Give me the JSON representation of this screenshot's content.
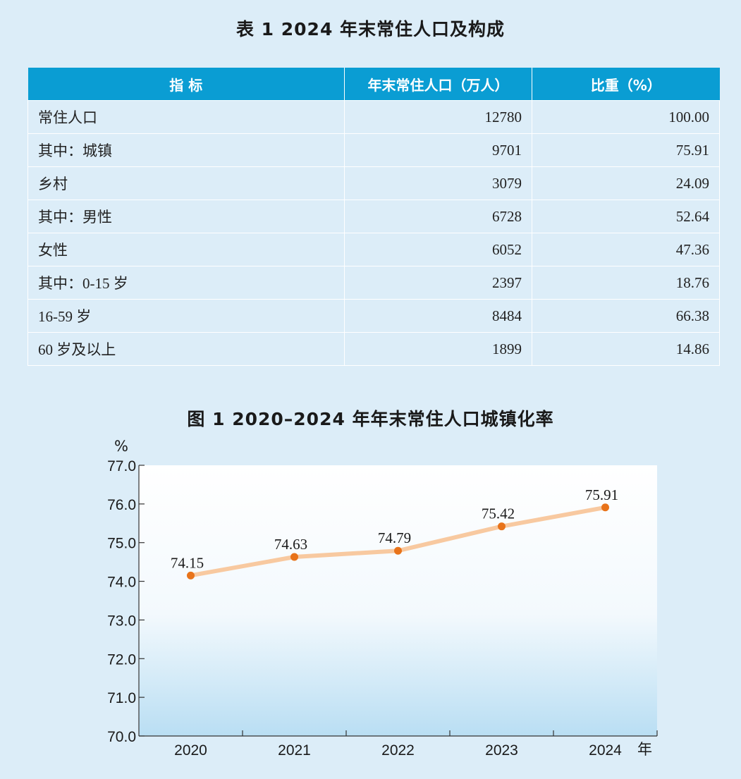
{
  "table": {
    "title": "表 1  2024 年末常住人口及构成",
    "headers": [
      "指  标",
      "年末常住人口（万人）",
      "比重（%）"
    ],
    "rows": [
      {
        "label": "常住人口",
        "population": "12780",
        "share": "100.00",
        "indent": 0
      },
      {
        "label": "其中：城镇",
        "population": "9701",
        "share": "75.91",
        "indent": 1
      },
      {
        "label": "乡村",
        "population": "3079",
        "share": "24.09",
        "indent": 2
      },
      {
        "label": "其中：男性",
        "population": "6728",
        "share": "52.64",
        "indent": 1
      },
      {
        "label": "女性",
        "population": "6052",
        "share": "47.36",
        "indent": 2
      },
      {
        "label": "其中：0-15 岁",
        "population": "2397",
        "share": "18.76",
        "indent": 1
      },
      {
        "label": "16-59 岁",
        "population": "8484",
        "share": "66.38",
        "indent": 2
      },
      {
        "label": "60 岁及以上",
        "population": "1899",
        "share": "14.86",
        "indent": 2
      }
    ]
  },
  "chart": {
    "title": "图 1  2020–2024 年年末常住人口城镇化率"
  },
  "chart_data": {
    "type": "line",
    "title": "图 1  2020–2024 年年末常住人口城镇化率",
    "x": [
      "2020",
      "2021",
      "2022",
      "2023",
      "2024"
    ],
    "values": [
      74.15,
      74.63,
      74.79,
      75.42,
      75.91
    ],
    "value_labels": [
      "74.15",
      "74.63",
      "74.79",
      "75.42",
      "75.91"
    ],
    "ylabel": "%",
    "xlabel": "年",
    "ylim": [
      70.0,
      77.0
    ],
    "yticks": [
      "70.0",
      "71.0",
      "72.0",
      "73.0",
      "74.0",
      "75.0",
      "76.0",
      "77.0"
    ],
    "line_color": "#f8c9a0",
    "marker_color": "#e8731a",
    "grid": false
  }
}
